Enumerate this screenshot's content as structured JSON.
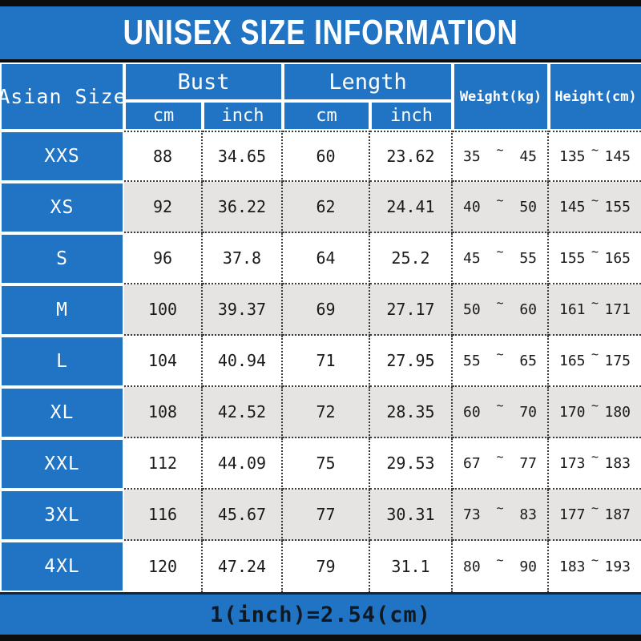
{
  "title": "UNISEX SIZE INFORMATION",
  "footer_note": "1(inch)=2.54(cm)",
  "colors": {
    "blue": "#2173c4",
    "dark_bar": "#0d0d0d",
    "row_base": "#ffffff",
    "row_alt": "#e5e4e2",
    "text_dark": "#1a1a1a",
    "border_white": "#ffffff",
    "dotted": "#3a3a3a",
    "footer_line": "#16253a",
    "footer_text": "#101820"
  },
  "table": {
    "range_separator": "~",
    "header": {
      "size_label": "Asian Size",
      "bust_label": "Bust",
      "length_label": "Length",
      "cm_label": "cm",
      "inch_label": "inch",
      "weight_label": "Weight(kg)",
      "height_label": "Height(cm)"
    },
    "rows": [
      {
        "size": "XXS",
        "bust_cm": "88",
        "bust_inch": "34.65",
        "length_cm": "60",
        "length_inch": "23.62",
        "weight": [
          "35",
          "45"
        ],
        "height": [
          "135",
          "145"
        ]
      },
      {
        "size": "XS",
        "bust_cm": "92",
        "bust_inch": "36.22",
        "length_cm": "62",
        "length_inch": "24.41",
        "weight": [
          "40",
          "50"
        ],
        "height": [
          "145",
          "155"
        ]
      },
      {
        "size": "S",
        "bust_cm": "96",
        "bust_inch": "37.8",
        "length_cm": "64",
        "length_inch": "25.2",
        "weight": [
          "45",
          "55"
        ],
        "height": [
          "155",
          "165"
        ]
      },
      {
        "size": "M",
        "bust_cm": "100",
        "bust_inch": "39.37",
        "length_cm": "69",
        "length_inch": "27.17",
        "weight": [
          "50",
          "60"
        ],
        "height": [
          "161",
          "171"
        ]
      },
      {
        "size": "L",
        "bust_cm": "104",
        "bust_inch": "40.94",
        "length_cm": "71",
        "length_inch": "27.95",
        "weight": [
          "55",
          "65"
        ],
        "height": [
          "165",
          "175"
        ]
      },
      {
        "size": "XL",
        "bust_cm": "108",
        "bust_inch": "42.52",
        "length_cm": "72",
        "length_inch": "28.35",
        "weight": [
          "60",
          "70"
        ],
        "height": [
          "170",
          "180"
        ]
      },
      {
        "size": "XXL",
        "bust_cm": "112",
        "bust_inch": "44.09",
        "length_cm": "75",
        "length_inch": "29.53",
        "weight": [
          "67",
          "77"
        ],
        "height": [
          "173",
          "183"
        ]
      },
      {
        "size": "3XL",
        "bust_cm": "116",
        "bust_inch": "45.67",
        "length_cm": "77",
        "length_inch": "30.31",
        "weight": [
          "73",
          "83"
        ],
        "height": [
          "177",
          "187"
        ]
      },
      {
        "size": "4XL",
        "bust_cm": "120",
        "bust_inch": "47.24",
        "length_cm": "79",
        "length_inch": "31.1",
        "weight": [
          "80",
          "90"
        ],
        "height": [
          "183",
          "193"
        ]
      }
    ]
  },
  "chart_data": {
    "type": "table",
    "title": "UNISEX SIZE INFORMATION",
    "columns": [
      "Asian Size",
      "Bust cm",
      "Bust inch",
      "Length cm",
      "Length inch",
      "Weight(kg)",
      "Height(cm)"
    ],
    "rows": [
      [
        "XXS",
        "88",
        "34.65",
        "60",
        "23.62",
        "35~45",
        "135~145"
      ],
      [
        "XS",
        "92",
        "36.22",
        "62",
        "24.41",
        "40~50",
        "145~155"
      ],
      [
        "S",
        "96",
        "37.8",
        "64",
        "25.2",
        "45~55",
        "155~165"
      ],
      [
        "M",
        "100",
        "39.37",
        "69",
        "27.17",
        "50~60",
        "161~171"
      ],
      [
        "L",
        "104",
        "40.94",
        "71",
        "27.95",
        "55~65",
        "165~175"
      ],
      [
        "XL",
        "108",
        "42.52",
        "72",
        "28.35",
        "60~70",
        "170~180"
      ],
      [
        "XXL",
        "112",
        "44.09",
        "75",
        "29.53",
        "67~77",
        "173~183"
      ],
      [
        "3XL",
        "116",
        "45.67",
        "77",
        "30.31",
        "73~83",
        "177~187"
      ],
      [
        "4XL",
        "120",
        "47.24",
        "79",
        "31.1",
        "80~90",
        "183~193"
      ]
    ],
    "note": "1(inch)=2.54(cm)",
    "layout": {
      "header_fill": "#2173c4",
      "alt_row_fill": "#e5e4e2",
      "grid": "dotted"
    }
  }
}
